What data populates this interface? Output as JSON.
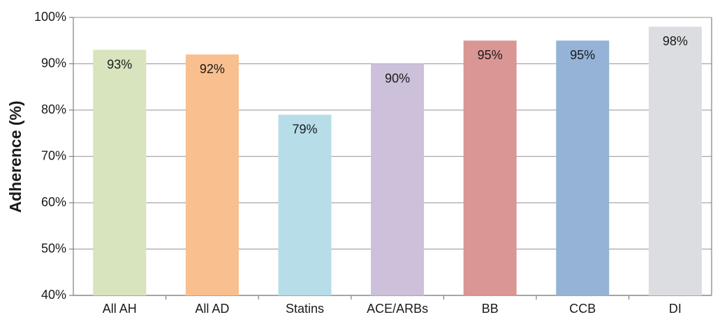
{
  "chart_data": {
    "type": "bar",
    "y_label": "Adherence (%)",
    "categories": [
      "All AH",
      "All AD",
      "Statins",
      "ACE/ARBs",
      "BB",
      "CCB",
      "DI"
    ],
    "values": [
      93,
      92,
      79,
      90,
      95,
      95,
      98
    ],
    "value_labels": [
      "93%",
      "92%",
      "79%",
      "90%",
      "95%",
      "95%",
      "98%"
    ],
    "colors": [
      "#d7e4bd",
      "#f9bf8f",
      "#b7dde8",
      "#ccc0da",
      "#d99694",
      "#95b3d7",
      "#dcdde0"
    ],
    "ylim": [
      40,
      100
    ],
    "yticks": [
      {
        "value": 40,
        "label": "40%"
      },
      {
        "value": 50,
        "label": "50%"
      },
      {
        "value": 60,
        "label": "60%"
      },
      {
        "value": 70,
        "label": "70%"
      },
      {
        "value": 80,
        "label": "80%"
      },
      {
        "value": 90,
        "label": "90%"
      },
      {
        "value": 100,
        "label": "100%"
      }
    ],
    "grid": true
  }
}
